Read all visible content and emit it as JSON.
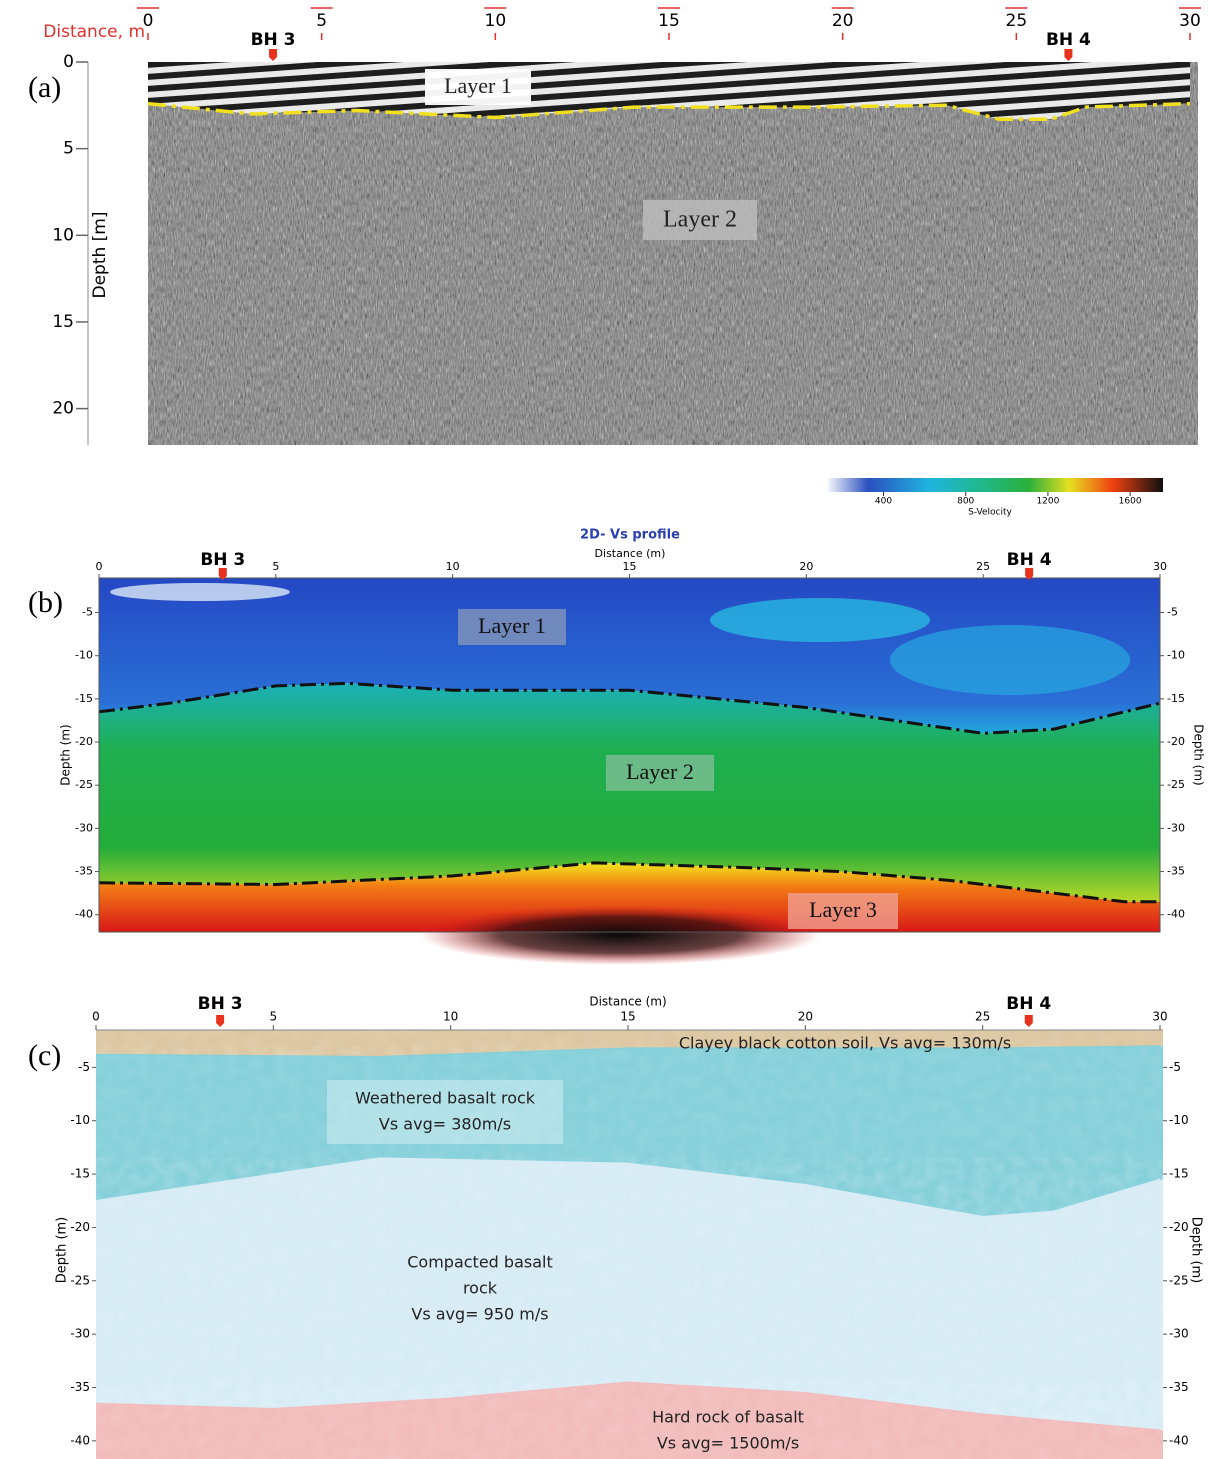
{
  "panel_a": {
    "label": "(a)",
    "x_label": "Distance, m",
    "y_label": "Depth [m]",
    "xlim": [
      0,
      30
    ],
    "xticks": [
      0,
      5,
      10,
      15,
      20,
      25,
      30
    ],
    "ylim": [
      0,
      22.1
    ],
    "yticks": [
      0,
      5,
      10,
      15,
      20
    ],
    "boreholes": [
      {
        "label": "BH 3",
        "x": 3.6
      },
      {
        "label": "BH 4",
        "x": 26.5
      }
    ],
    "interface": {
      "x": [
        0,
        3,
        6,
        10,
        14,
        19,
        23,
        24.5,
        26,
        27,
        30
      ],
      "depth": [
        2.4,
        3.0,
        2.8,
        3.2,
        2.6,
        2.6,
        2.5,
        3.3,
        3.3,
        2.6,
        2.4
      ]
    },
    "layers": [
      "Layer 1",
      "Layer 2"
    ]
  },
  "panel_b": {
    "label": "(b)",
    "title": "2D- Vs profile",
    "x_label": "Distance (m)",
    "y_label": "Depth (m)",
    "colorbar": {
      "label": "S-Velocity",
      "lim": [
        130,
        1760
      ],
      "ticks": [
        400,
        800,
        1200,
        1600
      ]
    },
    "xlim": [
      0,
      30
    ],
    "xticks": [
      0,
      5,
      10,
      15,
      20,
      25,
      30
    ],
    "ylim": [
      -1,
      -42
    ],
    "yticks": [
      -5,
      -10,
      -15,
      -20,
      -25,
      -30,
      -35,
      -40
    ],
    "boreholes": [
      {
        "label": "BH 3",
        "x": 3.5
      },
      {
        "label": "BH 4",
        "x": 26.3
      }
    ],
    "interfaces": [
      {
        "x": [
          0,
          2,
          5,
          7,
          10,
          15,
          20,
          23,
          25,
          27,
          29,
          30
        ],
        "depth": [
          -16.5,
          -15.5,
          -13.5,
          -13.2,
          -14,
          -14,
          -16,
          -17.8,
          -19,
          -18.5,
          -16.5,
          -15.5
        ]
      },
      {
        "x": [
          0,
          5,
          10,
          14,
          18,
          21,
          24,
          27,
          29,
          30
        ],
        "depth": [
          -36.3,
          -36.5,
          -35.5,
          -34,
          -34.5,
          -35,
          -36,
          -37.5,
          -38.5,
          -38.5
        ]
      }
    ],
    "layers": [
      "Layer 1",
      "Layer 2",
      "Layer 3"
    ]
  },
  "panel_c": {
    "label": "(c)",
    "x_label": "Distance (m)",
    "y_label": "Depth (m)",
    "xlim": [
      0,
      30
    ],
    "xticks": [
      0,
      5,
      10,
      15,
      20,
      25,
      30
    ],
    "ylim": [
      -1.5,
      -41.7
    ],
    "yticks": [
      -5,
      -10,
      -15,
      -20,
      -25,
      -30,
      -35,
      -40
    ],
    "boreholes": [
      {
        "label": "BH 3",
        "x": 3.5
      },
      {
        "label": "BH 4",
        "x": 26.3
      }
    ],
    "interfaces": [
      {
        "x": [
          0,
          8,
          15,
          25,
          30
        ],
        "depth": [
          -3.8,
          -4,
          -3.2,
          -3.2,
          -3
        ]
      },
      {
        "x": [
          0,
          5,
          8,
          15,
          20,
          25,
          27,
          30
        ],
        "depth": [
          -17.5,
          -15,
          -13.5,
          -14,
          -16,
          -19,
          -18.5,
          -15.5
        ]
      },
      {
        "x": [
          0,
          5,
          10,
          15,
          20,
          25,
          30
        ],
        "depth": [
          -36.5,
          -37,
          -36,
          -34.5,
          -35.5,
          -37.5,
          -39
        ]
      }
    ],
    "units": [
      {
        "lines": [
          "Clayey black cotton soil, Vs avg= 130m/s"
        ]
      },
      {
        "lines": [
          "Weathered basalt rock",
          "Vs avg= 380m/s"
        ]
      },
      {
        "lines": [
          "Compacted basalt",
          "rock",
          "Vs avg= 950 m/s"
        ]
      },
      {
        "lines": [
          "Hard rock of basalt",
          "Vs avg= 1500m/s"
        ]
      }
    ]
  }
}
